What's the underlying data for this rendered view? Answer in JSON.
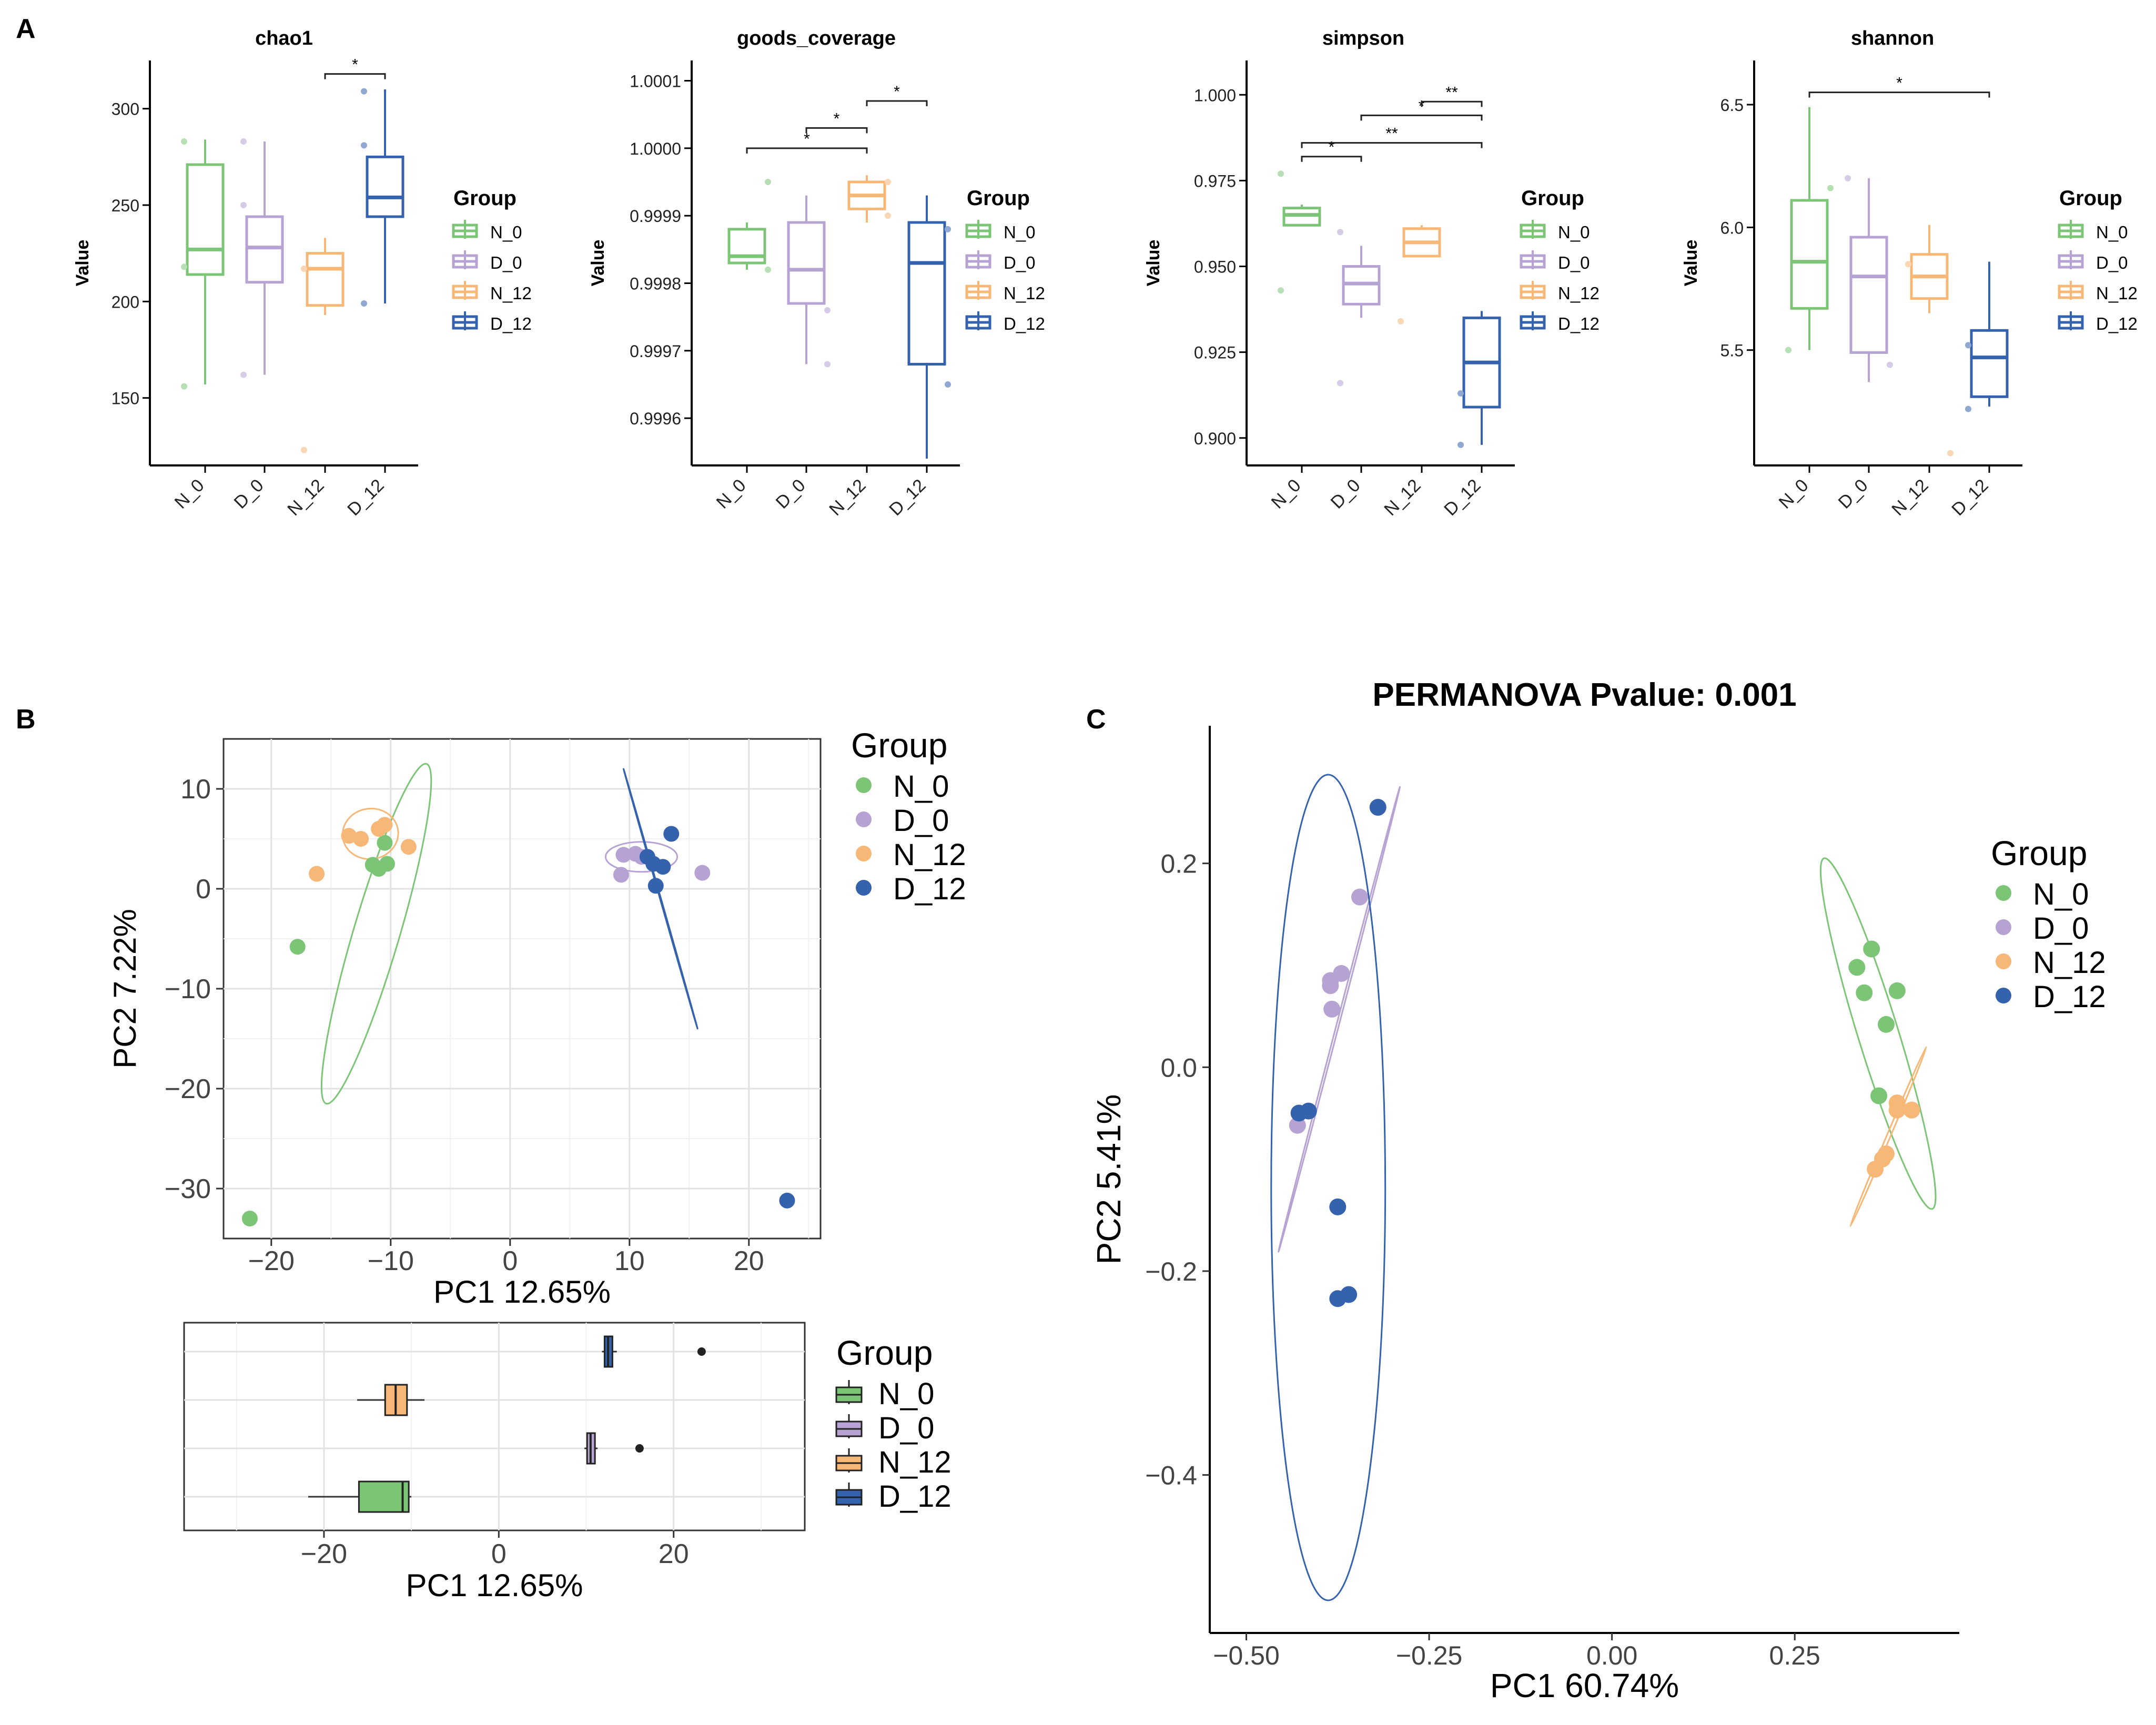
{
  "panel_letters": {
    "a": "A",
    "b": "B",
    "c": "C"
  },
  "colors": {
    "N_0": "#7cc576",
    "D_0": "#b6a3d4",
    "N_12": "#f6b777",
    "D_12": "#3462ad"
  },
  "chart_data": [
    {
      "type": "box",
      "panel": "A",
      "title": "chao1",
      "ylabel": "Value",
      "categories": [
        "N_0",
        "D_0",
        "N_12",
        "D_12"
      ],
      "ylim": [
        115,
        325
      ],
      "yticks": [
        150,
        200,
        250,
        300
      ],
      "ytick_labels": [
        "150",
        "200",
        "250",
        "300"
      ],
      "boxes": [
        {
          "group": "N_0",
          "low": 157,
          "q1": 214,
          "median": 227,
          "q3": 271,
          "high": 284
        },
        {
          "group": "D_0",
          "low": 162,
          "q1": 210,
          "median": 228,
          "q3": 244,
          "high": 283
        },
        {
          "group": "N_12",
          "low": 193,
          "q1": 198,
          "median": 217,
          "q3": 225,
          "high": 233
        },
        {
          "group": "D_12",
          "low": 199,
          "q1": 244,
          "median": 254,
          "q3": 275,
          "high": 310
        }
      ],
      "points": [
        [
          1,
          283
        ],
        [
          1,
          156
        ],
        [
          1,
          218
        ],
        [
          2,
          283
        ],
        [
          2,
          162
        ],
        [
          2,
          250
        ],
        [
          3,
          123
        ],
        [
          3,
          217
        ],
        [
          4,
          309
        ],
        [
          4,
          281
        ],
        [
          4,
          199
        ]
      ],
      "signif": [
        {
          "from": 3,
          "to": 4,
          "label": "*",
          "y": 318
        }
      ],
      "legend_title": "Group",
      "legend": [
        "N_0",
        "D_0",
        "N_12",
        "D_12"
      ]
    },
    {
      "type": "box",
      "panel": "A",
      "title": "goods_coverage",
      "ylabel": "Value",
      "categories": [
        "N_0",
        "D_0",
        "N_12",
        "D_12"
      ],
      "ylim": [
        0.99953,
        1.00013
      ],
      "yticks": [
        0.9996,
        0.9997,
        0.9998,
        0.9999,
        1.0,
        1.0001
      ],
      "ytick_labels": [
        "0.9996",
        "0.9997",
        "0.9998",
        "0.9999",
        "1.0000",
        "1.0001"
      ],
      "boxes": [
        {
          "group": "N_0",
          "low": 0.99982,
          "q1": 0.99983,
          "median": 0.99984,
          "q3": 0.99988,
          "high": 0.99989
        },
        {
          "group": "D_0",
          "low": 0.99968,
          "q1": 0.99977,
          "median": 0.99982,
          "q3": 0.99989,
          "high": 0.99993
        },
        {
          "group": "N_12",
          "low": 0.99989,
          "q1": 0.99991,
          "median": 0.99993,
          "q3": 0.99995,
          "high": 0.99996
        },
        {
          "group": "D_12",
          "low": 0.99954,
          "q1": 0.99968,
          "median": 0.99983,
          "q3": 0.99989,
          "high": 0.99993
        }
      ],
      "points": [
        [
          1,
          0.99995
        ],
        [
          1,
          0.99982
        ],
        [
          2,
          0.99968
        ],
        [
          2,
          0.99976
        ],
        [
          3,
          0.9999
        ],
        [
          3,
          0.99995
        ],
        [
          4,
          0.99965
        ],
        [
          4,
          0.99988
        ]
      ],
      "signif": [
        {
          "from": 1,
          "to": 3,
          "label": "*",
          "y": 1.0
        },
        {
          "from": 2,
          "to": 3,
          "label": "*",
          "y": 1.00003
        },
        {
          "from": 3,
          "to": 4,
          "label": "*",
          "y": 1.00007
        }
      ],
      "legend_title": "Group",
      "legend": [
        "N_0",
        "D_0",
        "N_12",
        "D_12"
      ]
    },
    {
      "type": "box",
      "panel": "A",
      "title": "simpson",
      "ylabel": "Value",
      "categories": [
        "N_0",
        "D_0",
        "N_12",
        "D_12"
      ],
      "ylim": [
        0.892,
        1.01
      ],
      "yticks": [
        0.9,
        0.925,
        0.95,
        0.975,
        1.0
      ],
      "ytick_labels": [
        "0.900",
        "0.925",
        "0.950",
        "0.975",
        "1.000"
      ],
      "boxes": [
        {
          "group": "N_0",
          "low": 0.962,
          "q1": 0.962,
          "median": 0.965,
          "q3": 0.967,
          "high": 0.968
        },
        {
          "group": "D_0",
          "low": 0.935,
          "q1": 0.939,
          "median": 0.945,
          "q3": 0.95,
          "high": 0.956
        },
        {
          "group": "N_12",
          "low": 0.953,
          "q1": 0.953,
          "median": 0.957,
          "q3": 0.961,
          "high": 0.962
        },
        {
          "group": "D_12",
          "low": 0.898,
          "q1": 0.909,
          "median": 0.922,
          "q3": 0.935,
          "high": 0.937
        }
      ],
      "points": [
        [
          1,
          0.977
        ],
        [
          1,
          0.943
        ],
        [
          2,
          0.916
        ],
        [
          2,
          0.96
        ],
        [
          3,
          0.934
        ],
        [
          4,
          0.898
        ],
        [
          4,
          0.913
        ]
      ],
      "signif": [
        {
          "from": 1,
          "to": 2,
          "label": "*",
          "y": 0.982
        },
        {
          "from": 1,
          "to": 4,
          "label": "**",
          "y": 0.986
        },
        {
          "from": 2,
          "to": 4,
          "label": "*",
          "y": 0.994
        },
        {
          "from": 3,
          "to": 4,
          "label": "**",
          "y": 0.998
        }
      ],
      "legend_title": "Group",
      "legend": [
        "N_0",
        "D_0",
        "N_12",
        "D_12"
      ]
    },
    {
      "type": "box",
      "panel": "A",
      "title": "shannon",
      "ylabel": "Value",
      "categories": [
        "N_0",
        "D_0",
        "N_12",
        "D_12"
      ],
      "ylim": [
        5.03,
        6.68
      ],
      "yticks": [
        5.5,
        6.0,
        6.5
      ],
      "ytick_labels": [
        "5.5",
        "6.0",
        "6.5"
      ],
      "boxes": [
        {
          "group": "N_0",
          "low": 5.5,
          "q1": 5.67,
          "median": 5.86,
          "q3": 6.11,
          "high": 6.49
        },
        {
          "group": "D_0",
          "low": 5.37,
          "q1": 5.49,
          "median": 5.8,
          "q3": 5.96,
          "high": 6.2
        },
        {
          "group": "N_12",
          "low": 5.65,
          "q1": 5.71,
          "median": 5.8,
          "q3": 5.89,
          "high": 6.01
        },
        {
          "group": "D_12",
          "low": 5.27,
          "q1": 5.31,
          "median": 5.47,
          "q3": 5.58,
          "high": 5.86
        }
      ],
      "points": [
        [
          1,
          6.16
        ],
        [
          1,
          5.5
        ],
        [
          2,
          5.44
        ],
        [
          2,
          6.2
        ],
        [
          3,
          5.08
        ],
        [
          3,
          5.85
        ],
        [
          4,
          5.26
        ],
        [
          4,
          5.52
        ]
      ],
      "signif": [
        {
          "from": 1,
          "to": 4,
          "label": "*",
          "y": 6.55
        }
      ],
      "legend_title": "Group",
      "legend": [
        "N_0",
        "D_0",
        "N_12",
        "D_12"
      ]
    },
    {
      "type": "scatter",
      "panel": "B",
      "xlabel": "PC1 12.65%",
      "ylabel": "PC2 7.22%",
      "xlim": [
        -24,
        26
      ],
      "ylim": [
        -35,
        15
      ],
      "xticks": [
        -20,
        -10,
        0,
        10,
        20
      ],
      "xtick_labels": [
        "−20",
        "−10",
        "0",
        "10",
        "20"
      ],
      "yticks": [
        10,
        0,
        -10,
        -20,
        -30
      ],
      "ytick_labels": [
        "10",
        "0",
        "−10",
        "−20",
        "−30"
      ],
      "series": [
        {
          "name": "N_0",
          "points": [
            [
              -10.5,
              4.6
            ],
            [
              -11.5,
              2.4
            ],
            [
              -10.3,
              2.5
            ],
            [
              -11,
              2
            ],
            [
              -17.8,
              -5.8
            ],
            [
              -21.8,
              -33
            ]
          ],
          "ellipse": {
            "cx": -11.2,
            "cy": -4.5,
            "points": [
              [
                -7,
                12.5
              ],
              [
                -16,
                -11.5
              ],
              [
                -10.5,
                6.5
              ]
            ]
          }
        },
        {
          "name": "D_0",
          "points": [
            [
              9.5,
              3.4
            ],
            [
              10.5,
              3.5
            ],
            [
              11,
              3.2
            ],
            [
              9.3,
              1.4
            ],
            [
              16.1,
              1.6
            ]
          ],
          "ellipse": {
            "cx": 11,
            "cy": 3.2,
            "points": [
              [
                11,
                4.7
              ],
              [
                13,
                3.2
              ],
              [
                8,
                3.2
              ]
            ]
          }
        },
        {
          "name": "N_12",
          "points": [
            [
              -13.5,
              5.3
            ],
            [
              -12.5,
              5
            ],
            [
              -11,
              6
            ],
            [
              -10.5,
              6.4
            ],
            [
              -8.5,
              4.2
            ],
            [
              -16.2,
              1.5
            ]
          ],
          "ellipse": {
            "cx": -11.7,
            "cy": 5.5,
            "points": [
              [
                -12,
                8
              ],
              [
                -9,
                5.5
              ],
              [
                -14,
                5
              ]
            ]
          }
        },
        {
          "name": "D_12",
          "points": [
            [
              13.5,
              5.5
            ],
            [
              11.5,
              3.2
            ],
            [
              12,
              2.5
            ],
            [
              12.8,
              2.2
            ],
            [
              12.2,
              0.3
            ],
            [
              23.2,
              -31.2
            ]
          ],
          "ellipse": {
            "cx": 12.6,
            "cy": -1,
            "points": [
              [
                9.5,
                12
              ],
              [
                16.5,
                -10.5
              ],
              [
                12.2,
                0.5
              ]
            ]
          }
        }
      ],
      "legend_title": "Group",
      "legend": [
        "N_0",
        "D_0",
        "N_12",
        "D_12"
      ]
    },
    {
      "type": "box",
      "orientation": "horizontal",
      "panel": "B",
      "xlabel": "PC1 12.65%",
      "xlim": [
        -36,
        35
      ],
      "xticks": [
        -20,
        0,
        20
      ],
      "xtick_labels": [
        "−20",
        "0",
        "20"
      ],
      "rows_top_to_bottom": [
        "D_12",
        "N_12",
        "D_0",
        "N_0"
      ],
      "boxes": [
        {
          "group": "D_12",
          "low": 11.8,
          "q1": 12.1,
          "median": 12.5,
          "q3": 13,
          "high": 13.5,
          "outliers": [
            23.2
          ]
        },
        {
          "group": "N_12",
          "low": -16.2,
          "q1": -13,
          "median": -11.8,
          "q3": -10.5,
          "high": -8.5,
          "outliers": []
        },
        {
          "group": "D_0",
          "low": 9.8,
          "q1": 10.1,
          "median": 10.5,
          "q3": 11,
          "high": 11.3,
          "outliers": [
            16.1
          ]
        },
        {
          "group": "N_0",
          "low": -21.8,
          "q1": -16,
          "median": -11,
          "q3": -10.3,
          "high": -10,
          "outliers": []
        }
      ],
      "legend_title": "Group",
      "legend": [
        "N_0",
        "D_0",
        "N_12",
        "D_12"
      ]
    },
    {
      "type": "scatter",
      "panel": "C",
      "title": "PERMANOVA Pvalue: 0.001",
      "xlabel": "PC1 60.74%",
      "ylabel": "PC2 5.41%",
      "xlim": [
        -0.55,
        0.475
      ],
      "ylim": [
        -0.555,
        0.335
      ],
      "xticks": [
        -0.5,
        -0.25,
        0.0,
        0.25
      ],
      "xtick_labels": [
        "−0.50",
        "−0.25",
        "0.00",
        "0.25"
      ],
      "yticks": [
        0.2,
        0.0,
        -0.2,
        -0.4
      ],
      "ytick_labels": [
        "0.2",
        "0.0",
        "−0.2",
        "−0.4"
      ],
      "series": [
        {
          "name": "N_0",
          "points": [
            [
              0.335,
              0.098
            ],
            [
              0.355,
              0.116
            ],
            [
              0.345,
              0.073
            ],
            [
              0.39,
              0.075
            ],
            [
              0.375,
              0.042
            ],
            [
              0.365,
              -0.028
            ]
          ],
          "ellipse": {
            "cx": 0.364,
            "cy": 0.033,
            "points": [
              [
                0.29,
                0.205
              ],
              [
                0.44,
                -0.14
              ],
              [
                0.39,
                0.04
              ]
            ]
          }
        },
        {
          "name": "D_0",
          "points": [
            [
              -0.345,
              0.167
            ],
            [
              -0.37,
              0.092
            ],
            [
              -0.385,
              0.085
            ],
            [
              -0.383,
              0.057
            ],
            [
              -0.43,
              -0.057
            ],
            [
              -0.385,
              0.08
            ]
          ],
          "ellipse": {
            "cx": -0.373,
            "cy": 0.047,
            "points": [
              [
                -0.29,
                0.275
              ],
              [
                -0.45,
                -0.122
              ],
              [
                -0.37,
                0.06
              ]
            ]
          }
        },
        {
          "name": "N_12",
          "points": [
            [
              0.39,
              -0.035
            ],
            [
              0.39,
              -0.042
            ],
            [
              0.41,
              -0.042
            ],
            [
              0.37,
              -0.09
            ],
            [
              0.36,
              -0.1
            ],
            [
              0.375,
              -0.085
            ]
          ],
          "ellipse": {
            "cx": 0.378,
            "cy": -0.068,
            "points": [
              [
                0.43,
                0.02
              ],
              [
                0.33,
                -0.16
              ],
              [
                0.38,
                -0.06
              ]
            ]
          }
        },
        {
          "name": "D_12",
          "points": [
            [
              -0.32,
              0.255
            ],
            [
              -0.428,
              -0.045
            ],
            [
              -0.415,
              -0.043
            ],
            [
              -0.375,
              -0.137
            ],
            [
              -0.375,
              -0.227
            ],
            [
              -0.36,
              -0.223
            ]
          ],
          "ellipse": {
            "cx": -0.388,
            "cy": -0.118,
            "points": [
              [
                -0.388,
                0.287
              ],
              [
                -0.388,
                -0.52
              ],
              [
                -0.31,
                -0.118
              ]
            ]
          }
        }
      ],
      "legend_title": "Group",
      "legend": [
        "N_0",
        "D_0",
        "N_12",
        "D_12"
      ]
    }
  ]
}
